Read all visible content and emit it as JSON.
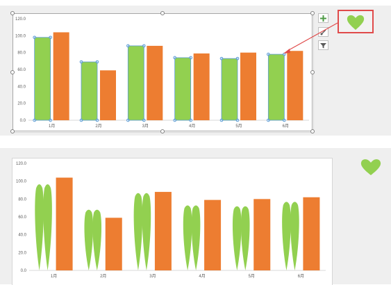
{
  "colors": {
    "green": "#92d050",
    "orange": "#ed7d31",
    "callout_border": "#e04a4a",
    "arrow": "#e04a4a",
    "selection_handle": "#5b9bd5"
  },
  "toolbar": {
    "buttons": [
      {
        "name": "chart-elements-button",
        "icon": "plus-icon"
      },
      {
        "name": "chart-styles-button",
        "icon": "brush-icon"
      },
      {
        "name": "chart-filters-button",
        "icon": "filter-icon"
      }
    ]
  },
  "callout": {
    "icon": "heart-icon"
  },
  "free_shape": {
    "icon": "heart-icon"
  },
  "chart_data": [
    {
      "type": "bar",
      "categories": [
        "1月",
        "2月",
        "3月",
        "4月",
        "5月",
        "6月"
      ],
      "series": [
        {
          "values": [
            98,
            69,
            88,
            74,
            73,
            78
          ],
          "color": "#92d050",
          "selected": true
        },
        {
          "values": [
            104,
            59,
            88,
            79,
            80,
            82
          ],
          "color": "#ed7d31"
        }
      ],
      "yticks": [
        "0.0",
        "20.0",
        "40.0",
        "60.0",
        "80.0",
        "100.0",
        "120.0"
      ],
      "ylim": [
        0,
        120
      ],
      "grid": false,
      "legend": "none"
    },
    {
      "type": "bar",
      "categories": [
        "1月",
        "2月",
        "3月",
        "4月",
        "5月",
        "6月"
      ],
      "series": [
        {
          "values": [
            98,
            69,
            88,
            74,
            73,
            78
          ],
          "color": "#92d050",
          "marker": "heart-petals"
        },
        {
          "values": [
            104,
            59,
            88,
            79,
            80,
            82
          ],
          "color": "#ed7d31"
        }
      ],
      "yticks": [
        "0.0",
        "20.0",
        "40.0",
        "60.0",
        "80.0",
        "100.0",
        "120.0"
      ],
      "ylim": [
        0,
        120
      ],
      "grid": false,
      "legend": "none"
    }
  ]
}
